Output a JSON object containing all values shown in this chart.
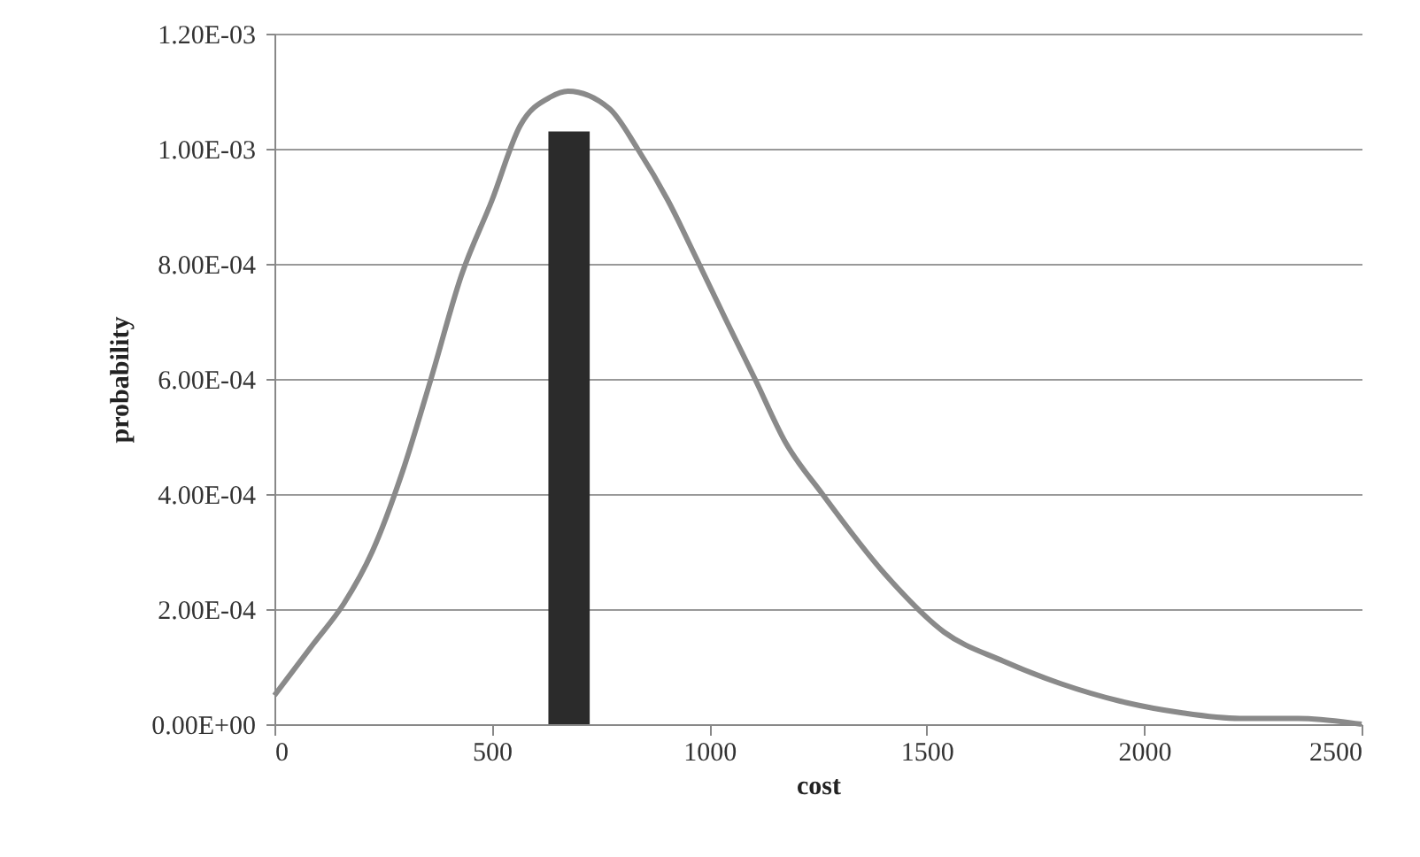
{
  "chart_data": {
    "type": "line",
    "xlabel": "cost",
    "ylabel": "probability",
    "xlim": [
      0,
      2500
    ],
    "xticks": [
      0,
      500,
      1000,
      1500,
      2000,
      2500
    ],
    "ylim": [
      0,
      0.0012
    ],
    "yticks": [
      {
        "value": 0,
        "label": "0.00E+00"
      },
      {
        "value": 0.0002,
        "label": "2.00E-04"
      },
      {
        "value": 0.0004,
        "label": "4.00E-04"
      },
      {
        "value": 0.0006,
        "label": "6.00E-04"
      },
      {
        "value": 0.0008,
        "label": "8.00E-04"
      },
      {
        "value": 0.001,
        "label": "1.00E-03"
      },
      {
        "value": 0.0012,
        "label": "1.20E-03"
      }
    ],
    "grid": "y",
    "marker": "none",
    "line_style": "solid",
    "series": [
      {
        "type": "histogram",
        "color": "#2b2b2b",
        "bins": [
          630,
          725
        ],
        "values": [
          0.00103
        ]
      },
      {
        "color": "#8a8a8a",
        "x": [
          0,
          90,
          160,
          225,
          295,
          360,
          430,
          500,
          565,
          635,
          675,
          770,
          835,
          905,
          970,
          1040,
          1105,
          1175,
          1260,
          1405,
          1540,
          1675,
          1810,
          1945,
          2085,
          2220,
          2355,
          2500
        ],
        "values": [
          5e-05,
          0.00014,
          0.00021,
          0.0003,
          0.00044,
          0.0006,
          0.00078,
          0.00091,
          0.00104,
          0.00109,
          0.0011,
          0.00107,
          0.001,
          0.00091,
          0.00081,
          0.0007,
          0.0006,
          0.00049,
          0.0004,
          0.00026,
          0.00016,
          0.00011,
          7e-05,
          4e-05,
          2e-05,
          1e-05,
          1e-05,
          0
        ]
      }
    ]
  }
}
